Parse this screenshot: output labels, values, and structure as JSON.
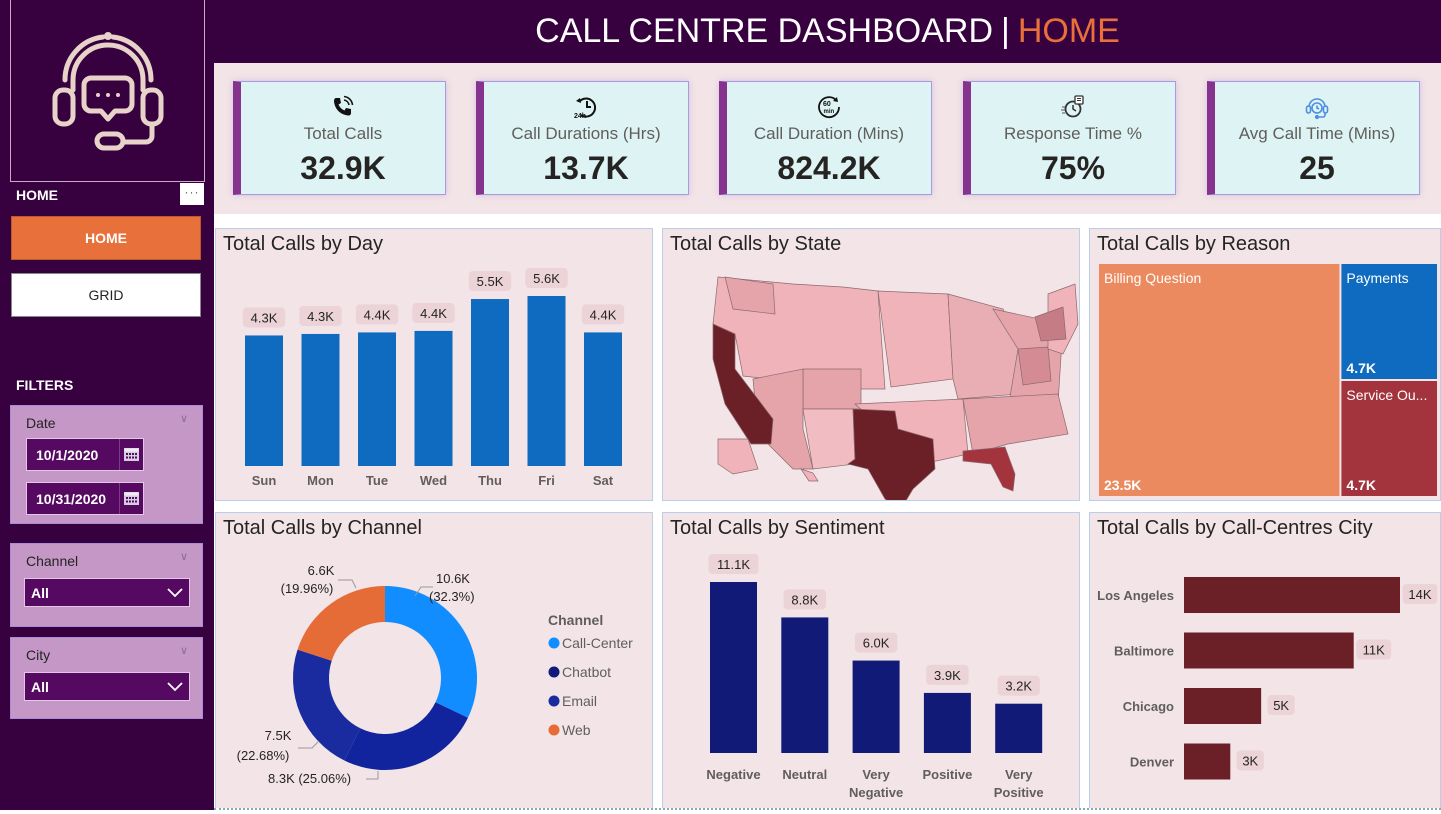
{
  "header": {
    "title": "CALL CENTRE DASHBOARD",
    "separator": "|",
    "page": "HOME"
  },
  "sidebar": {
    "logo_icon": "headset-chat-icon",
    "nav_heading": "HOME",
    "more_label": "···",
    "nav_buttons": [
      {
        "label": "HOME",
        "active": true
      },
      {
        "label": "GRID",
        "active": false
      }
    ],
    "filters_heading": "FILTERS",
    "date_filter": {
      "title": "Date",
      "start": "10/1/2020",
      "end": "10/31/2020"
    },
    "channel_filter": {
      "title": "Channel",
      "value": "All"
    },
    "city_filter": {
      "title": "City",
      "value": "All"
    }
  },
  "kpis": [
    {
      "label": "Total Calls",
      "value": "32.9K",
      "icon": "phone-ringing-icon"
    },
    {
      "label": "Call Durations (Hrs)",
      "value": "13.7K",
      "icon": "24h-clock-icon"
    },
    {
      "label": "Call Duration (Mins)",
      "value": "824.2K",
      "icon": "60-min-timer-icon"
    },
    {
      "label": "Response Time %",
      "value": "75%",
      "icon": "stopwatch-icon"
    },
    {
      "label": "Avg Call Time (Mins)",
      "value": "25",
      "icon": "headset-clock-icon"
    }
  ],
  "colors": {
    "sidebar_bg": "#370140",
    "accent_orange": "#e8703a",
    "panel_bg": "#f3e4e7",
    "kpi_bg": "#def3f3",
    "kpi_stripe": "#85338f",
    "bar_blue": "#0f6bc0",
    "bar_navy": "#111b77",
    "bar_maroon": "#6b2027"
  },
  "chart_data": [
    {
      "id": "calls_by_day",
      "type": "bar",
      "title": "Total Calls by Day",
      "categories": [
        "Sun",
        "Mon",
        "Tue",
        "Wed",
        "Thu",
        "Fri",
        "Sat"
      ],
      "values": [
        4300,
        4350,
        4400,
        4450,
        5500,
        5600,
        4400
      ],
      "labels": [
        "4.3K",
        "4.3K",
        "4.4K",
        "4.4K",
        "5.5K",
        "5.6K",
        "4.4K"
      ],
      "color": "#0f6bc0",
      "grid": false
    },
    {
      "id": "calls_by_state",
      "type": "map",
      "title": "Total Calls by State",
      "highlighted": [
        {
          "state": "California",
          "level": "highest"
        },
        {
          "state": "Texas",
          "level": "highest"
        },
        {
          "state": "Florida",
          "level": "high"
        },
        {
          "state": "New York",
          "level": "high"
        }
      ]
    },
    {
      "id": "calls_by_reason",
      "type": "treemap",
      "title": "Total Calls by Reason",
      "items": [
        {
          "name": "Billing Question",
          "value": 23500,
          "label": "23.5K",
          "color": "#eb895f"
        },
        {
          "name": "Payments",
          "value": 4700,
          "label": "4.7K",
          "color": "#0f6bc0"
        },
        {
          "name": "Service Ou...",
          "value": 4700,
          "label": "4.7K",
          "color": "#a3333d"
        }
      ]
    },
    {
      "id": "calls_by_channel",
      "type": "pie",
      "title": "Total Calls by Channel",
      "legend_title": "Channel",
      "legend_position": "right",
      "slices": [
        {
          "name": "Call-Center",
          "value": 10600,
          "pct": 32.3,
          "label": "10.6K",
          "pct_label": "(32.3%)",
          "color": "#118dff"
        },
        {
          "name": "Chatbot",
          "value": 8300,
          "pct": 25.06,
          "label": "8.3K",
          "pct_label": "(25.06%)",
          "color": "#12239e"
        },
        {
          "name": "Email",
          "value": 7500,
          "pct": 22.68,
          "label": "7.5K",
          "pct_label": "(22.68%)",
          "color": "#1a2ba0"
        },
        {
          "name": "Web",
          "value": 6600,
          "pct": 19.96,
          "label": "6.6K",
          "pct_label": "(19.96%)",
          "color": "#e66c37"
        }
      ],
      "legend_colors": [
        "#118dff",
        "#12197a",
        "#1a2ba0",
        "#e66c37"
      ]
    },
    {
      "id": "calls_by_sentiment",
      "type": "bar",
      "title": "Total Calls by Sentiment",
      "categories": [
        "Negative",
        "Neutral",
        "Very Negative",
        "Positive",
        "Very Positive"
      ],
      "category_lines": [
        [
          "Negative"
        ],
        [
          "Neutral"
        ],
        [
          "Very",
          "Negative"
        ],
        [
          "Positive"
        ],
        [
          "Very",
          "Positive"
        ]
      ],
      "values": [
        11100,
        8800,
        6000,
        3900,
        3200
      ],
      "labels": [
        "11.1K",
        "8.8K",
        "6.0K",
        "3.9K",
        "3.2K"
      ],
      "color": "#111b77",
      "grid": false
    },
    {
      "id": "calls_by_city",
      "type": "bar",
      "orientation": "horizontal",
      "title": "Total Calls by Call-Centres City",
      "categories": [
        "Los Angeles",
        "Baltimore",
        "Chicago",
        "Denver"
      ],
      "values": [
        14000,
        11000,
        5000,
        3000
      ],
      "labels": [
        "14K",
        "11K",
        "5K",
        "3K"
      ],
      "color": "#6b2027",
      "grid": false
    }
  ]
}
